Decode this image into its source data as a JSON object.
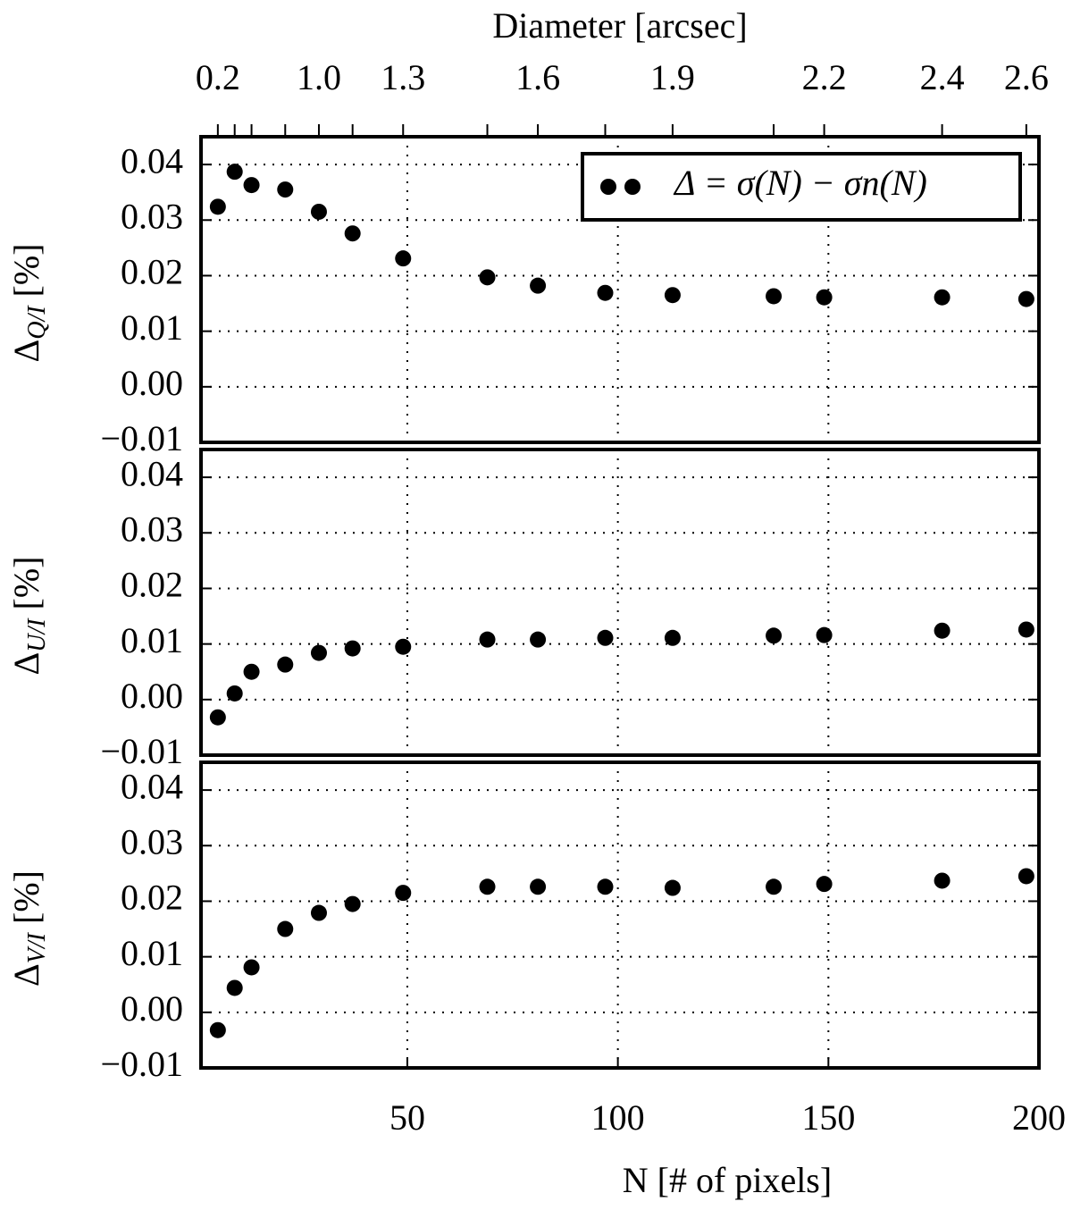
{
  "chart_data": [
    {
      "type": "scatter",
      "ylabel": {
        "symbol": "Δ",
        "subscript": "Q/I",
        "unit": " [%]"
      },
      "x2label": "Diameter [arcsec]",
      "x2ticks": [
        {
          "value": 5,
          "label": "0.2"
        },
        {
          "value": 29,
          "label": "1.0"
        },
        {
          "value": 49,
          "label": "1.3"
        },
        {
          "value": 81,
          "label": "1.6"
        },
        {
          "value": 113,
          "label": "1.9"
        },
        {
          "value": 149,
          "label": "2.2"
        },
        {
          "value": 177,
          "label": "2.4"
        },
        {
          "value": 197,
          "label": "2.6"
        }
      ],
      "x2minor": [
        9,
        13,
        21,
        37,
        69,
        97,
        137
      ],
      "x": [
        5,
        9,
        13,
        21,
        29,
        37,
        49,
        69,
        81,
        97,
        113,
        137,
        149,
        177,
        197
      ],
      "series": [
        {
          "name": "Δ = σ(N) − σn(N)",
          "color": "#000000",
          "values": [
            0.0324,
            0.0387,
            0.0363,
            0.0355,
            0.0315,
            0.0276,
            0.0231,
            0.0197,
            0.0182,
            0.0169,
            0.0165,
            0.0163,
            0.0161,
            0.0161,
            0.0158
          ]
        }
      ],
      "xlim": [
        1,
        200
      ],
      "ylim": [
        -0.01,
        0.045
      ],
      "yticks": [
        {
          "value": -0.01,
          "label": "−0.01"
        },
        {
          "value": 0,
          "label": "0.00"
        },
        0.01,
        0.02,
        0.03,
        0.04
      ],
      "xgrid": [
        50,
        100,
        150
      ],
      "grid": true,
      "legend": "upper right"
    },
    {
      "type": "scatter",
      "ylabel": {
        "symbol": "Δ",
        "subscript": "U/I",
        "unit": " [%]"
      },
      "x": [
        5,
        9,
        13,
        21,
        29,
        37,
        49,
        69,
        81,
        97,
        113,
        137,
        149,
        177,
        197
      ],
      "series": [
        {
          "color": "#000000",
          "values": [
            -0.0032,
            0.0011,
            0.005,
            0.0063,
            0.0084,
            0.0092,
            0.0095,
            0.0108,
            0.0108,
            0.0111,
            0.0111,
            0.0115,
            0.0116,
            0.0124,
            0.0126
          ]
        }
      ],
      "xlim": [
        1,
        200
      ],
      "ylim": [
        -0.01,
        0.045
      ],
      "yticks": [
        {
          "value": -0.01,
          "label": "−0.01"
        },
        {
          "value": 0,
          "label": "0.00"
        },
        0.01,
        0.02,
        0.03,
        0.04
      ],
      "xgrid": [
        50,
        100,
        150
      ],
      "grid": true
    },
    {
      "type": "scatter",
      "ylabel": {
        "symbol": "Δ",
        "subscript": "V/I",
        "unit": " [%]"
      },
      "xlabel": "N [# of pixels]",
      "x": [
        5,
        9,
        13,
        21,
        29,
        37,
        49,
        69,
        81,
        97,
        113,
        137,
        149,
        177,
        197
      ],
      "series": [
        {
          "color": "#000000",
          "values": [
            -0.0032,
            0.0044,
            0.0081,
            0.015,
            0.0179,
            0.0195,
            0.0215,
            0.0226,
            0.0226,
            0.0226,
            0.0224,
            0.0226,
            0.0231,
            0.0237,
            0.0245
          ]
        }
      ],
      "xlim": [
        1,
        200
      ],
      "ylim": [
        -0.01,
        0.045
      ],
      "yticks": [
        {
          "value": -0.01,
          "label": "−0.01"
        },
        {
          "value": 0,
          "label": "0.00"
        },
        0.01,
        0.02,
        0.03,
        0.04
      ],
      "xticks": [
        50,
        100,
        150,
        200
      ],
      "xgrid": [
        50,
        100,
        150
      ],
      "grid": true
    }
  ]
}
